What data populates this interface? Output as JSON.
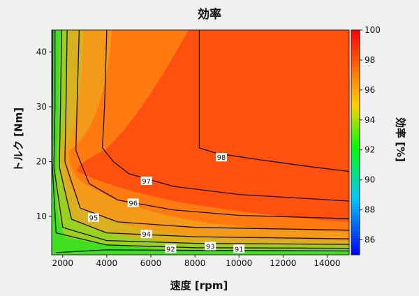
{
  "chart_data": {
    "type": "heatmap",
    "title": "効率",
    "xlabel": "速度 [rpm]",
    "ylabel": "トルク [Nm]",
    "colorbar_label": "効率 [%]",
    "xlim": [
      1500,
      15000
    ],
    "ylim": [
      3,
      44
    ],
    "x_ticks": [
      2000,
      4000,
      6000,
      8000,
      10000,
      12000,
      14000
    ],
    "y_ticks": [
      10,
      20,
      30,
      40
    ],
    "colorbar_range": [
      85,
      100
    ],
    "colorbar_ticks": [
      86,
      88,
      90,
      92,
      94,
      96,
      98,
      100
    ],
    "colormap": [
      "#0000ff",
      "#00c8ff",
      "#00ff00",
      "#ffd000",
      "#ff8000",
      "#ff0000"
    ],
    "contours": [
      {
        "level": "98",
        "points": [
          [
            8200,
            44
          ],
          [
            8200,
            22.5
          ],
          [
            9000,
            21.5
          ],
          [
            11000,
            20.3
          ],
          [
            13000,
            19.2
          ],
          [
            15000,
            18.2
          ]
        ],
        "label_at": [
          9200,
          20.8
        ]
      },
      {
        "level": "97",
        "points": [
          [
            4000,
            44
          ],
          [
            3900,
            30
          ],
          [
            3800,
            22.5
          ],
          [
            4300,
            20
          ],
          [
            5000,
            17.8
          ],
          [
            7000,
            15.5
          ],
          [
            10000,
            14
          ],
          [
            15000,
            12.8
          ]
        ],
        "label_at": [
          5800,
          16.5
        ]
      },
      {
        "level": "96",
        "points": [
          [
            2750,
            44
          ],
          [
            2650,
            30
          ],
          [
            2600,
            22
          ],
          [
            3200,
            16
          ],
          [
            4500,
            13
          ],
          [
            7000,
            11.2
          ],
          [
            10000,
            10.2
          ],
          [
            15000,
            9.6
          ]
        ],
        "label_at": [
          5200,
          12.5
        ]
      },
      {
        "level": "95",
        "points": [
          [
            2200,
            44
          ],
          [
            2150,
            30
          ],
          [
            2100,
            20
          ],
          [
            2800,
            11.5
          ],
          [
            4500,
            9
          ],
          [
            8000,
            8
          ],
          [
            15000,
            7.5
          ]
        ],
        "label_at": [
          3400,
          9.8
        ]
      },
      {
        "level": "94",
        "points": [
          [
            1950,
            44
          ],
          [
            1900,
            30
          ],
          [
            1850,
            19
          ],
          [
            2400,
            9.5
          ],
          [
            4000,
            7
          ],
          [
            8000,
            6.3
          ],
          [
            15000,
            5.9
          ]
        ],
        "label_at": [
          5800,
          6.8
        ]
      },
      {
        "level": "93",
        "points": [
          [
            1650,
            44
          ],
          [
            1650,
            30
          ],
          [
            1600,
            19
          ],
          [
            2000,
            8
          ],
          [
            4000,
            5.6
          ],
          [
            8000,
            5.1
          ],
          [
            15000,
            4.9
          ]
        ],
        "label_at": [
          8700,
          4.6
        ]
      },
      {
        "level": "92",
        "points": [
          [
            1550,
            44
          ],
          [
            1520,
            20
          ],
          [
            1700,
            7
          ],
          [
            4000,
            4.8
          ],
          [
            8000,
            4.3
          ],
          [
            15000,
            4.2
          ]
        ],
        "label_at": [
          6900,
          4.1
        ]
      },
      {
        "level": "91",
        "points": [
          [
            1700,
            3.4
          ],
          [
            4000,
            3.9
          ],
          [
            8000,
            3.8
          ],
          [
            15000,
            3.7
          ]
        ],
        "label_at": [
          10000,
          4.1
        ]
      }
    ]
  }
}
